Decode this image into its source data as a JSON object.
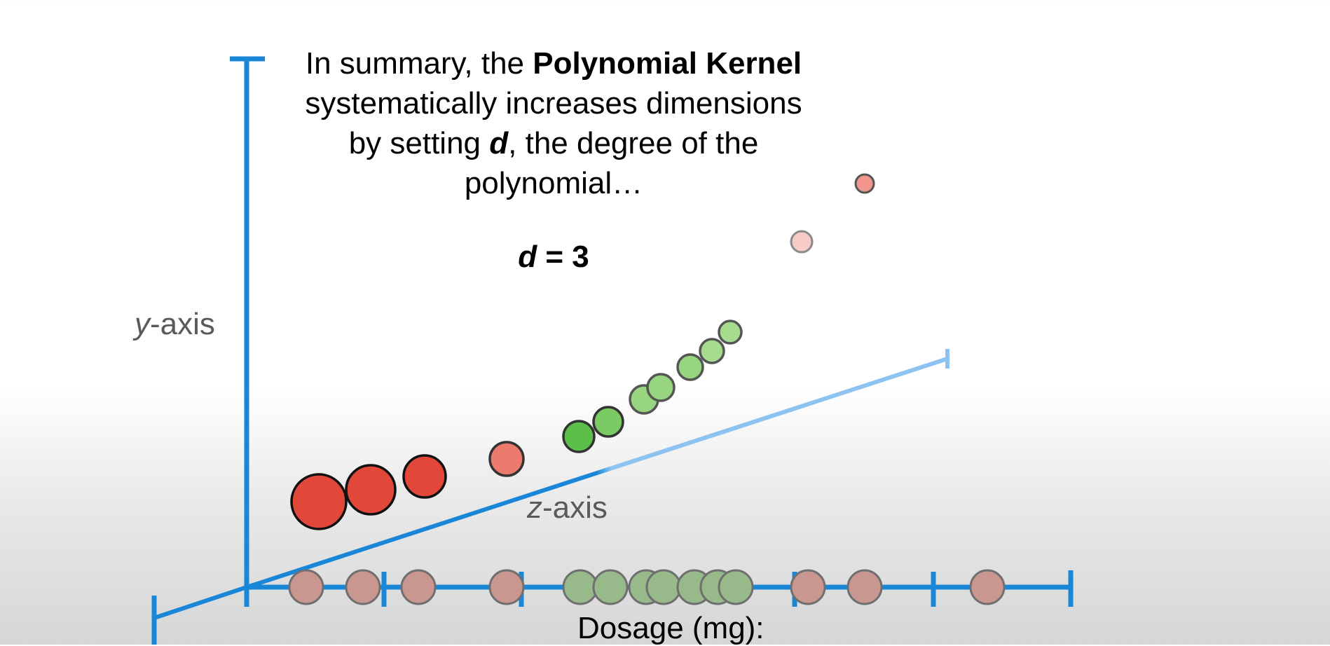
{
  "caption": {
    "line1_prefix": "In summary, the ",
    "line1_bold": "Polynomial Kernel",
    "line2": "systematically increases dimensions",
    "line3_prefix": "by setting ",
    "line3_var": "d",
    "line3_suffix": ", the degree of the",
    "line4": "polynomial…"
  },
  "degree": {
    "var": "d",
    "rest": " = 3"
  },
  "axes": {
    "y_var": "y",
    "y_rest": "-axis",
    "z_var": "z",
    "z_rest": "-axis",
    "x_label": "Dosage (mg):"
  },
  "colors": {
    "axis_blue": "#1a86d8",
    "z_axis_light": "#8cc3f0",
    "red_dot": "#e2483a",
    "green_dot": "#5cbf4a",
    "light_green_dot": "#97d67e",
    "muted_red_dot": "#c99690",
    "muted_green_dot": "#98b98a",
    "faded_pink_dot": "#f6cbc8"
  }
}
